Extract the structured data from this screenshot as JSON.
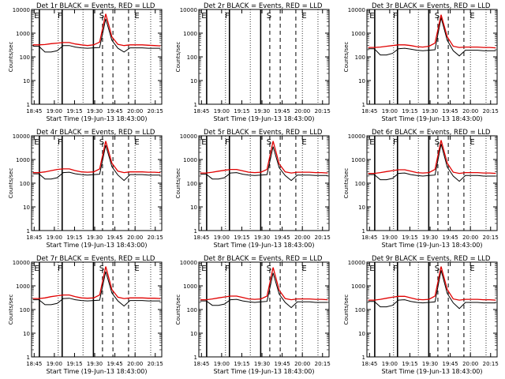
{
  "colors": {
    "events": "#000000",
    "lld": "#e00000",
    "background": "#ffffff"
  },
  "chart_data": [
    {
      "type": "line",
      "title": "Det 1r  BLACK = Events, RED = LLD",
      "xlabel": "Start Time (19-Jun-13 18:43:00)",
      "ylabel": "Counts/sec",
      "yscale": "log",
      "ylim": [
        1,
        10000
      ],
      "x_ticks": [
        "18:45",
        "19:00",
        "19:15",
        "19:30",
        "19:45",
        "20:00",
        "20:15"
      ],
      "y_ticks": [
        "1",
        "10",
        "100",
        "1000",
        "10000"
      ],
      "markers": [
        "E",
        "F",
        "S",
        "E"
      ],
      "series": [
        {
          "name": "Events",
          "values": [
            280,
            280,
            160,
            160,
            180,
            300,
            300,
            260,
            240,
            230,
            240,
            250,
            4000,
            500,
            230,
            160,
            240,
            240,
            240,
            230,
            230,
            230
          ]
        },
        {
          "name": "LLD",
          "values": [
            320,
            320,
            330,
            360,
            380,
            400,
            400,
            350,
            320,
            300,
            320,
            420,
            6500,
            700,
            340,
            300,
            320,
            320,
            320,
            310,
            300,
            290
          ]
        }
      ]
    },
    {
      "type": "line",
      "title": "Det 2r  BLACK = Events, RED = LLD",
      "xlabel": "Start Time (19-Jun-13 18:43:00)",
      "ylabel": "Counts/sec",
      "yscale": "log",
      "ylim": [
        1,
        10000
      ],
      "x_ticks": [
        "18:45",
        "19:00",
        "19:15",
        "19:30",
        "19:45",
        "20:00",
        "20:15"
      ],
      "y_ticks": [
        "1",
        "10",
        "100",
        "1000",
        "10000"
      ],
      "markers": [
        "E",
        "F",
        "S",
        "E"
      ],
      "series": []
    },
    {
      "type": "line",
      "title": "Det 3r  BLACK = Events, RED = LLD",
      "xlabel": "Start Time (19-Jun-13 18:43:00)",
      "ylabel": "Counts/sec",
      "yscale": "log",
      "ylim": [
        1,
        10000
      ],
      "x_ticks": [
        "18:45",
        "19:00",
        "19:15",
        "19:30",
        "19:45",
        "20:00",
        "20:15"
      ],
      "y_ticks": [
        "1",
        "10",
        "100",
        "1000",
        "10000"
      ],
      "markers": [
        "E",
        "F",
        "S",
        "E"
      ],
      "series": [
        {
          "name": "Events",
          "values": [
            220,
            220,
            120,
            120,
            140,
            220,
            230,
            210,
            190,
            180,
            190,
            200,
            4500,
            500,
            180,
            110,
            190,
            190,
            190,
            180,
            180,
            180
          ]
        },
        {
          "name": "LLD",
          "values": [
            250,
            250,
            260,
            280,
            300,
            320,
            320,
            300,
            270,
            260,
            280,
            380,
            6000,
            700,
            280,
            250,
            260,
            260,
            260,
            250,
            250,
            240
          ]
        }
      ]
    },
    {
      "type": "line",
      "title": "Det 4r  BLACK = Events, RED = LLD",
      "xlabel": "Start Time (19-Jun-13 18:43:00)",
      "ylabel": "Counts/sec",
      "yscale": "log",
      "ylim": [
        1,
        10000
      ],
      "x_ticks": [
        "18:45",
        "19:00",
        "19:15",
        "19:30",
        "19:45",
        "20:00",
        "20:15"
      ],
      "y_ticks": [
        "1",
        "10",
        "100",
        "1000",
        "10000"
      ],
      "markers": [
        "E",
        "F",
        "S",
        "E"
      ],
      "series": [
        {
          "name": "Events",
          "values": [
            250,
            250,
            150,
            150,
            170,
            280,
            290,
            250,
            230,
            220,
            230,
            240,
            4000,
            500,
            220,
            130,
            230,
            230,
            230,
            220,
            220,
            220
          ]
        },
        {
          "name": "LLD",
          "values": [
            280,
            280,
            300,
            340,
            380,
            400,
            400,
            340,
            300,
            290,
            300,
            400,
            6000,
            700,
            320,
            280,
            300,
            300,
            300,
            290,
            290,
            280
          ]
        }
      ]
    },
    {
      "type": "line",
      "title": "Det 5r  BLACK = Events, RED = LLD",
      "xlabel": "Start Time (19-Jun-13 18:43:00)",
      "ylabel": "Counts/sec",
      "yscale": "log",
      "ylim": [
        1,
        10000
      ],
      "x_ticks": [
        "18:45",
        "19:00",
        "19:15",
        "19:30",
        "19:45",
        "20:00",
        "20:15"
      ],
      "y_ticks": [
        "1",
        "10",
        "100",
        "1000",
        "10000"
      ],
      "markers": [
        "E",
        "F",
        "S",
        "E"
      ],
      "series": [
        {
          "name": "Events",
          "values": [
            240,
            240,
            150,
            150,
            170,
            270,
            280,
            240,
            220,
            210,
            220,
            230,
            3500,
            450,
            210,
            130,
            220,
            220,
            220,
            210,
            210,
            210
          ]
        },
        {
          "name": "LLD",
          "values": [
            270,
            270,
            290,
            320,
            350,
            380,
            380,
            330,
            290,
            280,
            290,
            380,
            6000,
            650,
            300,
            270,
            290,
            290,
            290,
            280,
            280,
            270
          ]
        }
      ]
    },
    {
      "type": "line",
      "title": "Det 6r  BLACK = Events, RED = LLD",
      "xlabel": "Start Time (19-Jun-13 18:43:00)",
      "ylabel": "Counts/sec",
      "yscale": "log",
      "ylim": [
        1,
        10000
      ],
      "x_ticks": [
        "18:45",
        "19:00",
        "19:15",
        "19:30",
        "19:45",
        "20:00",
        "20:15"
      ],
      "y_ticks": [
        "1",
        "10",
        "100",
        "1000",
        "10000"
      ],
      "markers": [
        "E",
        "F",
        "S",
        "E"
      ],
      "series": [
        {
          "name": "Events",
          "values": [
            230,
            230,
            140,
            140,
            160,
            260,
            270,
            230,
            210,
            200,
            210,
            220,
            4500,
            480,
            200,
            120,
            210,
            210,
            210,
            200,
            200,
            200
          ]
        },
        {
          "name": "LLD",
          "values": [
            260,
            260,
            280,
            310,
            340,
            370,
            370,
            320,
            280,
            270,
            280,
            380,
            6500,
            700,
            290,
            260,
            280,
            280,
            280,
            270,
            270,
            260
          ]
        }
      ]
    },
    {
      "type": "line",
      "title": "Det 7r  BLACK = Events, RED = LLD",
      "xlabel": "Start Time (19-Jun-13 18:43:00)",
      "ylabel": "Counts/sec",
      "yscale": "log",
      "ylim": [
        1,
        10000
      ],
      "x_ticks": [
        "18:45",
        "19:00",
        "19:15",
        "19:30",
        "19:45",
        "20:00",
        "20:15"
      ],
      "y_ticks": [
        "1",
        "10",
        "100",
        "1000",
        "10000"
      ],
      "markers": [
        "E",
        "F",
        "S",
        "E"
      ],
      "series": [
        {
          "name": "Events",
          "values": [
            260,
            260,
            160,
            160,
            180,
            290,
            300,
            260,
            240,
            230,
            240,
            250,
            4000,
            500,
            230,
            140,
            240,
            240,
            240,
            230,
            230,
            230
          ]
        },
        {
          "name": "LLD",
          "values": [
            290,
            290,
            310,
            350,
            380,
            410,
            410,
            350,
            310,
            300,
            310,
            410,
            6500,
            700,
            330,
            290,
            310,
            310,
            310,
            300,
            300,
            290
          ]
        }
      ]
    },
    {
      "type": "line",
      "title": "Det 8r  BLACK = Events, RED = LLD",
      "xlabel": "Start Time (19-Jun-13 18:43:00)",
      "ylabel": "Counts/sec",
      "yscale": "log",
      "ylim": [
        1,
        10000
      ],
      "x_ticks": [
        "18:45",
        "19:00",
        "19:15",
        "19:30",
        "19:45",
        "20:00",
        "20:15"
      ],
      "y_ticks": [
        "1",
        "10",
        "100",
        "1000",
        "10000"
      ],
      "markers": [
        "E",
        "F",
        "S",
        "E"
      ],
      "series": [
        {
          "name": "Events",
          "values": [
            230,
            230,
            150,
            150,
            170,
            260,
            270,
            230,
            210,
            200,
            210,
            220,
            3500,
            450,
            200,
            120,
            210,
            210,
            210,
            200,
            200,
            200
          ]
        },
        {
          "name": "LLD",
          "values": [
            260,
            260,
            280,
            310,
            340,
            370,
            370,
            320,
            280,
            270,
            280,
            370,
            6000,
            650,
            290,
            260,
            280,
            280,
            280,
            270,
            270,
            260
          ]
        }
      ]
    },
    {
      "type": "line",
      "title": "Det 9r  BLACK = Events, RED = LLD",
      "xlabel": "Start Time (19-Jun-13 18:43:00)",
      "ylabel": "Counts/sec",
      "yscale": "log",
      "ylim": [
        1,
        10000
      ],
      "x_ticks": [
        "18:45",
        "19:00",
        "19:15",
        "19:30",
        "19:45",
        "20:00",
        "20:15"
      ],
      "y_ticks": [
        "1",
        "10",
        "100",
        "1000",
        "10000"
      ],
      "markers": [
        "E",
        "F",
        "S",
        "E"
      ],
      "series": [
        {
          "name": "Events",
          "values": [
            220,
            220,
            130,
            130,
            150,
            250,
            260,
            220,
            200,
            190,
            200,
            210,
            4500,
            480,
            190,
            110,
            200,
            200,
            200,
            190,
            190,
            190
          ]
        },
        {
          "name": "LLD",
          "values": [
            250,
            250,
            270,
            300,
            330,
            360,
            360,
            310,
            270,
            260,
            270,
            370,
            6500,
            700,
            280,
            250,
            270,
            270,
            270,
            260,
            260,
            250
          ]
        }
      ]
    }
  ]
}
